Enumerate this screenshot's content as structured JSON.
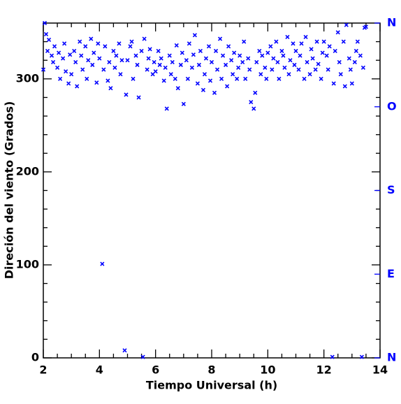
{
  "chart_data": {
    "type": "scatter",
    "xlabel": "Tiempo Universal (h)",
    "ylabel": "Direción del viento (Grados)",
    "color": "#0000ff",
    "xlim": [
      2,
      14
    ],
    "xticks": [
      2,
      4,
      6,
      8,
      10,
      12,
      14
    ],
    "xminorticks": [
      2.5,
      3,
      3.5,
      4.5,
      5,
      5.5,
      6.5,
      7,
      7.5,
      8.5,
      9,
      9.5,
      10.5,
      11,
      11.5,
      12.5,
      13,
      13.5
    ],
    "ylim": [
      0,
      360
    ],
    "yticks": [
      0,
      100,
      200,
      300
    ],
    "yminorticks": [
      20,
      40,
      60,
      80,
      120,
      140,
      160,
      180,
      220,
      240,
      260,
      280,
      320,
      340
    ],
    "y2lim": [
      0,
      360
    ],
    "y2ticks": [
      {
        "value": 0,
        "label": "N"
      },
      {
        "value": 90,
        "label": "E"
      },
      {
        "value": 180,
        "label": "S"
      },
      {
        "value": 270,
        "label": "O"
      },
      {
        "value": 360,
        "label": "N"
      }
    ],
    "x": [
      2.0,
      2.05,
      2.1,
      2.15,
      2.2,
      2.3,
      2.35,
      2.4,
      2.5,
      2.55,
      2.6,
      2.7,
      2.75,
      2.8,
      2.9,
      2.95,
      3.0,
      3.1,
      3.15,
      3.2,
      3.3,
      3.35,
      3.4,
      3.5,
      3.55,
      3.6,
      3.7,
      3.75,
      3.8,
      3.9,
      3.95,
      4.0,
      4.1,
      4.15,
      4.2,
      4.3,
      4.35,
      4.4,
      4.5,
      4.55,
      4.6,
      4.7,
      4.75,
      4.8,
      4.9,
      4.95,
      5.0,
      5.1,
      5.15,
      5.2,
      5.3,
      5.35,
      5.4,
      5.5,
      5.55,
      5.6,
      5.7,
      5.75,
      5.8,
      5.9,
      5.95,
      6.0,
      6.1,
      6.15,
      6.2,
      6.3,
      6.35,
      6.4,
      6.5,
      6.55,
      6.6,
      6.7,
      6.75,
      6.8,
      6.9,
      6.95,
      7.0,
      7.1,
      7.15,
      7.2,
      7.3,
      7.35,
      7.4,
      7.5,
      7.55,
      7.6,
      7.7,
      7.75,
      7.8,
      7.9,
      7.95,
      8.0,
      8.1,
      8.15,
      8.2,
      8.3,
      8.35,
      8.4,
      8.5,
      8.55,
      8.6,
      8.7,
      8.75,
      8.8,
      8.9,
      8.95,
      9.0,
      9.1,
      9.15,
      9.2,
      9.3,
      9.35,
      9.4,
      9.5,
      9.55,
      9.6,
      9.7,
      9.75,
      9.8,
      9.9,
      9.95,
      10.0,
      10.1,
      10.15,
      10.2,
      10.3,
      10.35,
      10.4,
      10.5,
      10.55,
      10.6,
      10.7,
      10.75,
      10.8,
      10.9,
      10.95,
      11.0,
      11.1,
      11.15,
      11.2,
      11.3,
      11.35,
      11.4,
      11.5,
      11.55,
      11.6,
      11.7,
      11.75,
      11.8,
      11.9,
      11.95,
      12.0,
      12.1,
      12.15,
      12.2,
      12.3,
      12.35,
      12.4,
      12.5,
      12.55,
      12.6,
      12.7,
      12.75,
      12.8,
      12.9,
      12.95,
      13.0,
      13.1,
      13.15,
      13.2,
      13.3,
      13.35,
      13.4,
      13.45,
      13.5
    ],
    "values": [
      310,
      360,
      348,
      330,
      342,
      325,
      318,
      335,
      312,
      328,
      300,
      322,
      338,
      308,
      295,
      326,
      305,
      330,
      318,
      292,
      340,
      325,
      310,
      335,
      300,
      320,
      343,
      315,
      328,
      296,
      338,
      322,
      101,
      310,
      335,
      298,
      318,
      290,
      330,
      312,
      325,
      338,
      305,
      320,
      8,
      283,
      320,
      335,
      340,
      300,
      325,
      315,
      280,
      330,
      1,
      343,
      310,
      322,
      332,
      305,
      318,
      308,
      330,
      315,
      322,
      298,
      312,
      268,
      325,
      305,
      318,
      300,
      336,
      290,
      315,
      328,
      273,
      320,
      300,
      338,
      312,
      326,
      347,
      295,
      315,
      330,
      288,
      305,
      322,
      335,
      298,
      318,
      285,
      330,
      310,
      343,
      300,
      325,
      315,
      292,
      335,
      320,
      305,
      328,
      300,
      312,
      325,
      318,
      340,
      300,
      322,
      310,
      275,
      268,
      285,
      318,
      330,
      305,
      325,
      312,
      300,
      328,
      335,
      310,
      322,
      340,
      318,
      300,
      330,
      325,
      312,
      345,
      305,
      320,
      338,
      315,
      330,
      310,
      325,
      338,
      300,
      345,
      318,
      305,
      332,
      322,
      310,
      340,
      316,
      300,
      328,
      340,
      325,
      310,
      335,
      1,
      295,
      330,
      350,
      318,
      305,
      340,
      292,
      358,
      322,
      310,
      295,
      318,
      330,
      340,
      325,
      1,
      312,
      355,
      356
    ]
  }
}
